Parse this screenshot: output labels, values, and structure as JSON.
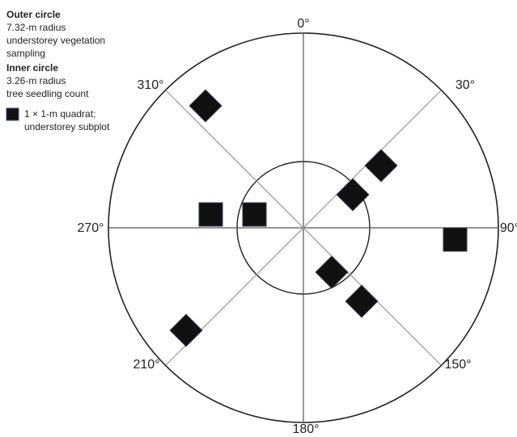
{
  "legend": {
    "outer": {
      "title": "Outer circle",
      "lines": [
        "7.32-m radius",
        "understorey vegetation",
        "sampling"
      ]
    },
    "inner": {
      "title": "Inner circle",
      "lines": [
        "3.26-m radius",
        "tree seedling count"
      ]
    },
    "quadrat": {
      "lines": [
        "1 × 1-m quadrat;",
        "understorey subplot"
      ]
    }
  },
  "angles": [
    "0°",
    "30°",
    "90°",
    "150°",
    "180°",
    "210°",
    "270°",
    "310°"
  ]
}
